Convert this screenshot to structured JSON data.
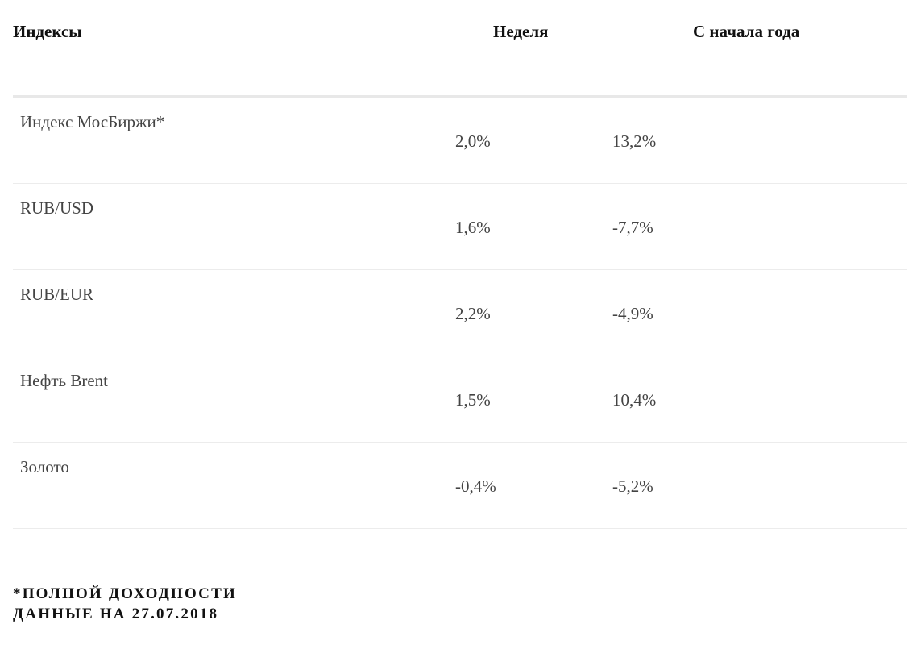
{
  "table": {
    "header": [
      "Индексы",
      "Неделя",
      "С начала года"
    ],
    "rows": [
      [
        "Индекс МосБиржи*",
        "2,0%",
        "13,2%"
      ],
      [
        "RUB/USD",
        "1,6%",
        "-7,7%"
      ],
      [
        "RUB/EUR",
        "2,2%",
        "-4,9%"
      ],
      [
        "Нефть Brent",
        "1,5%",
        "10,4%"
      ],
      [
        "Золото",
        "-0,4%",
        "-5,2%"
      ]
    ]
  },
  "footnotes": [
    "*ПОЛНОЙ ДОХОДНОСТИ",
    "ДАННЫЕ НА 27.07.2018"
  ]
}
